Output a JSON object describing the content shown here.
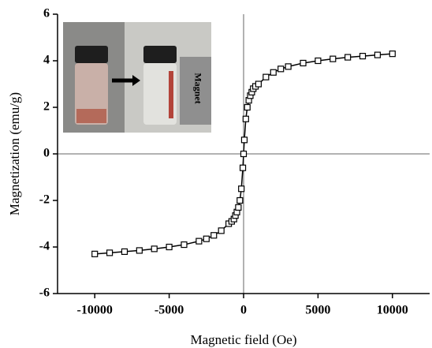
{
  "chart_data": {
    "type": "line",
    "xlabel": "Magnetic field (Oe)",
    "ylabel": "Magnetization (emu/g)",
    "annotations": [
      "Magnet"
    ],
    "series": [
      {
        "color": "#000000",
        "x": [
          -10000,
          -9000,
          -8000,
          -7000,
          -6000,
          -5000,
          -4000,
          -3000,
          -2500,
          -2000,
          -1500,
          -1000,
          -800,
          -650,
          -550,
          -450,
          -350,
          -250,
          -150,
          -50,
          0,
          50,
          150,
          250,
          350,
          450,
          550,
          650,
          800,
          1000,
          1500,
          2000,
          2500,
          3000,
          4000,
          5000,
          6000,
          7000,
          8000,
          9000,
          10000
        ],
        "values": [
          -4.3,
          -4.25,
          -4.2,
          -4.15,
          -4.08,
          -4.0,
          -3.9,
          -3.75,
          -3.65,
          -3.5,
          -3.3,
          -3.0,
          -2.9,
          -2.8,
          -2.65,
          -2.5,
          -2.3,
          -2.0,
          -1.5,
          -0.6,
          0,
          0.6,
          1.5,
          2.0,
          2.3,
          2.5,
          2.65,
          2.8,
          2.9,
          3.0,
          3.3,
          3.5,
          3.65,
          3.75,
          3.9,
          4.0,
          4.08,
          4.15,
          4.2,
          4.25,
          4.3
        ]
      }
    ],
    "xlim": [
      -12500,
      12500
    ],
    "xticks": [
      -10000,
      -5000,
      0,
      5000,
      10000
    ],
    "ylim": [
      -6,
      6
    ],
    "yticks": [
      -6,
      -4,
      -2,
      0,
      2,
      4,
      6
    ],
    "zero_lines": true
  }
}
